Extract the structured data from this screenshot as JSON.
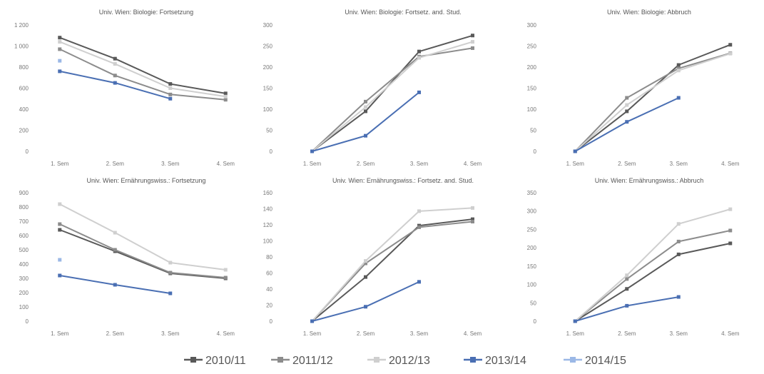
{
  "legend": {
    "entries": [
      {
        "name": "2010/11",
        "color": "#595959"
      },
      {
        "name": "2011/12",
        "color": "#8c8c8c"
      },
      {
        "name": "2012/13",
        "color": "#cfcfcf"
      },
      {
        "name": "2013/14",
        "color": "#4a6fb3"
      },
      {
        "name": "2014/15",
        "color": "#9bb8e6"
      }
    ]
  },
  "chart_data": [
    {
      "type": "line",
      "title": "Univ. Wien: Biologie: Fortsetzung",
      "categories": [
        "1. Sem",
        "2. Sem",
        "3. Sem",
        "4. Sem"
      ],
      "ylim": [
        0,
        1200
      ],
      "yticks": [
        0,
        200,
        400,
        600,
        800,
        1000,
        1200
      ],
      "ytick_labels": [
        "0",
        "200",
        "400",
        "600",
        "800",
        "1 000",
        "1 200"
      ],
      "grid": false,
      "series": [
        {
          "name": "2010/11",
          "color": "#595959",
          "values": [
            1080,
            880,
            640,
            550
          ]
        },
        {
          "name": "2011/12",
          "color": "#8c8c8c",
          "values": [
            970,
            720,
            540,
            490
          ]
        },
        {
          "name": "2012/13",
          "color": "#cfcfcf",
          "values": [
            1040,
            830,
            600,
            520
          ]
        },
        {
          "name": "2013/14",
          "color": "#4a6fb3",
          "values": [
            760,
            650,
            500,
            null
          ]
        },
        {
          "name": "2014/15",
          "color": "#9bb8e6",
          "values": [
            860,
            null,
            null,
            null
          ]
        }
      ]
    },
    {
      "type": "line",
      "title": "Univ. Wien: Biologie: Fortsetz. and. Stud.",
      "categories": [
        "1. Sem",
        "2. Sem",
        "3. Sem",
        "4. Sem"
      ],
      "ylim": [
        0,
        300
      ],
      "yticks": [
        0,
        50,
        100,
        150,
        200,
        250,
        300
      ],
      "ytick_labels": [
        "0",
        "50",
        "100",
        "150",
        "200",
        "250",
        "300"
      ],
      "grid": false,
      "series": [
        {
          "name": "2010/11",
          "color": "#595959",
          "values": [
            0,
            95,
            237,
            275
          ]
        },
        {
          "name": "2011/12",
          "color": "#8c8c8c",
          "values": [
            0,
            118,
            225,
            245
          ]
        },
        {
          "name": "2012/13",
          "color": "#cfcfcf",
          "values": [
            0,
            105,
            222,
            260
          ]
        },
        {
          "name": "2013/14",
          "color": "#4a6fb3",
          "values": [
            0,
            37,
            140,
            null
          ]
        }
      ]
    },
    {
      "type": "line",
      "title": "Univ. Wien: Biologie: Abbruch",
      "categories": [
        "1. Sem",
        "2. Sem",
        "3. Sem",
        "4. Sem"
      ],
      "ylim": [
        0,
        300
      ],
      "yticks": [
        0,
        50,
        100,
        150,
        200,
        250,
        300
      ],
      "ytick_labels": [
        "0",
        "50",
        "100",
        "150",
        "200",
        "250",
        "300"
      ],
      "grid": false,
      "series": [
        {
          "name": "2010/11",
          "color": "#595959",
          "values": [
            0,
            95,
            205,
            253
          ]
        },
        {
          "name": "2011/12",
          "color": "#8c8c8c",
          "values": [
            0,
            127,
            197,
            233
          ]
        },
        {
          "name": "2012/13",
          "color": "#cfcfcf",
          "values": [
            0,
            110,
            192,
            232
          ]
        },
        {
          "name": "2013/14",
          "color": "#4a6fb3",
          "values": [
            0,
            70,
            127,
            null
          ]
        }
      ]
    },
    {
      "type": "line",
      "title": "Univ. Wien: Ernährungswiss.: Fortsetzung",
      "categories": [
        "1. Sem",
        "2. Sem",
        "3. Sem",
        "4. Sem"
      ],
      "ylim": [
        0,
        900
      ],
      "yticks": [
        0,
        100,
        200,
        300,
        400,
        500,
        600,
        700,
        800,
        900
      ],
      "ytick_labels": [
        "0",
        "100",
        "200",
        "300",
        "400",
        "500",
        "600",
        "700",
        "800",
        "900"
      ],
      "grid": false,
      "series": [
        {
          "name": "2010/11",
          "color": "#595959",
          "values": [
            640,
            490,
            335,
            300
          ]
        },
        {
          "name": "2011/12",
          "color": "#8c8c8c",
          "values": [
            680,
            500,
            340,
            305
          ]
        },
        {
          "name": "2012/13",
          "color": "#cfcfcf",
          "values": [
            820,
            620,
            410,
            360
          ]
        },
        {
          "name": "2013/14",
          "color": "#4a6fb3",
          "values": [
            320,
            255,
            195,
            null
          ]
        },
        {
          "name": "2014/15",
          "color": "#9bb8e6",
          "values": [
            430,
            null,
            null,
            null
          ]
        }
      ]
    },
    {
      "type": "line",
      "title": "Univ. Wien: Ernährungswiss.: Fortsetz. and. Stud.",
      "categories": [
        "1. Sem",
        "2. Sem",
        "3. Sem",
        "4. Sem"
      ],
      "ylim": [
        0,
        160
      ],
      "yticks": [
        0,
        20,
        40,
        60,
        80,
        100,
        120,
        140,
        160
      ],
      "ytick_labels": [
        "0",
        "20",
        "40",
        "60",
        "80",
        "100",
        "120",
        "140",
        "160"
      ],
      "grid": false,
      "series": [
        {
          "name": "2010/11",
          "color": "#595959",
          "values": [
            0,
            55,
            119,
            127
          ]
        },
        {
          "name": "2011/12",
          "color": "#8c8c8c",
          "values": [
            0,
            72,
            117,
            124
          ]
        },
        {
          "name": "2012/13",
          "color": "#cfcfcf",
          "values": [
            0,
            75,
            137,
            141
          ]
        },
        {
          "name": "2013/14",
          "color": "#4a6fb3",
          "values": [
            0,
            18,
            49,
            null
          ]
        }
      ]
    },
    {
      "type": "line",
      "title": "Univ. Wien: Ernährungswiss.: Abbruch",
      "categories": [
        "1. Sem",
        "2. Sem",
        "3. Sem",
        "4. Sem"
      ],
      "ylim": [
        0,
        350
      ],
      "yticks": [
        0,
        50,
        100,
        150,
        200,
        250,
        300,
        350
      ],
      "ytick_labels": [
        "0",
        "50",
        "100",
        "150",
        "200",
        "250",
        "300",
        "350"
      ],
      "grid": false,
      "series": [
        {
          "name": "2010/11",
          "color": "#595959",
          "values": [
            0,
            88,
            182,
            212
          ]
        },
        {
          "name": "2011/12",
          "color": "#8c8c8c",
          "values": [
            0,
            115,
            217,
            247
          ]
        },
        {
          "name": "2012/13",
          "color": "#cfcfcf",
          "values": [
            0,
            125,
            265,
            305
          ]
        },
        {
          "name": "2013/14",
          "color": "#4a6fb3",
          "values": [
            0,
            42,
            66,
            null
          ]
        }
      ]
    }
  ]
}
